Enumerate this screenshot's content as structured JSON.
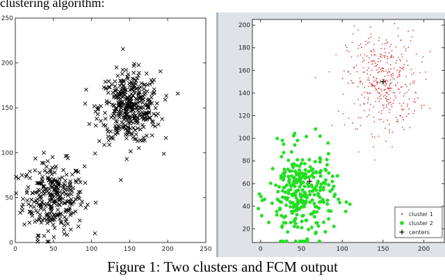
{
  "top_text": "clustering algorithm:",
  "caption": "Figure 1: Two clusters and FCM output",
  "chart_data": [
    {
      "type": "scatter",
      "title": "",
      "xlabel": "",
      "ylabel": "",
      "xlim": [
        0,
        250
      ],
      "ylim": [
        0,
        250
      ],
      "x_ticks": [
        0,
        50,
        100,
        150,
        200,
        250
      ],
      "y_ticks": [
        0,
        50,
        100,
        150,
        200,
        250
      ],
      "marker": "x",
      "marker_color": "#000000",
      "grid": false,
      "series": [
        {
          "center": [
            50,
            50
          ],
          "spread": 20,
          "count": 300
        },
        {
          "center": [
            150,
            150
          ],
          "spread": 20,
          "count": 400
        }
      ]
    },
    {
      "type": "scatter",
      "title": "",
      "xlabel": "",
      "ylabel": "",
      "xlim": [
        -10,
        225
      ],
      "ylim": [
        8,
        205
      ],
      "x_ticks": [
        0,
        50,
        100,
        150,
        200
      ],
      "y_ticks": [
        20,
        40,
        60,
        80,
        100,
        120,
        140,
        160,
        180,
        200
      ],
      "grid": false,
      "legend_position": "bottom-right",
      "series": [
        {
          "name": "cluster 1",
          "marker": "dot",
          "color": "#e04040",
          "center": [
            150,
            150
          ],
          "spread": 22,
          "count": 400
        },
        {
          "name": "cluster 2",
          "marker": "star",
          "color": "#22dd22",
          "center": [
            50,
            50
          ],
          "spread": 20,
          "count": 300
        }
      ],
      "centers": {
        "name": "centers",
        "marker": "+",
        "color": "#000000",
        "points": [
          [
            150,
            150
          ],
          [
            60,
            62
          ]
        ]
      }
    }
  ]
}
